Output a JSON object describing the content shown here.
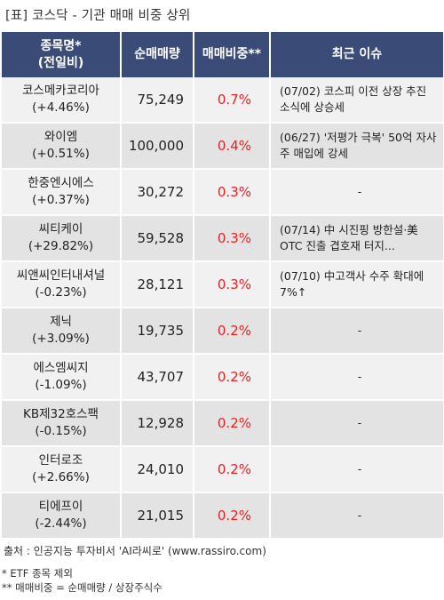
{
  "title": "[표] 코스닥 - 기관 매매 비중 상위",
  "headers": {
    "name_line1": "종목명*",
    "name_line2": "(전일비)",
    "volume": "순매매량",
    "ratio": "매매비중**",
    "issue": "최근 이슈"
  },
  "rows": [
    {
      "name": "코스메카코리아",
      "change": "(+4.46%)",
      "volume": "75,249",
      "ratio": "0.7%",
      "issue": "(07/02) 코스피 이전 상장 추진 소식에 상승세"
    },
    {
      "name": "와이엠",
      "change": "(+0.51%)",
      "volume": "100,000",
      "ratio": "0.4%",
      "issue": "(06/27) '저평가 극복' 50억 자사주 매입에 강세"
    },
    {
      "name": "한중엔시에스",
      "change": "(+0.37%)",
      "volume": "30,272",
      "ratio": "0.3%",
      "issue": "-"
    },
    {
      "name": "씨티케이",
      "change": "(+29.82%)",
      "volume": "59,528",
      "ratio": "0.3%",
      "issue": "(07/14) 中 시진핑 방한설·美OTC 진출 겹호재 터지..."
    },
    {
      "name": "씨앤씨인터내셔널",
      "change": "(-0.23%)",
      "volume": "28,121",
      "ratio": "0.3%",
      "issue": "(07/10) 中고객사 수주 확대에 7%↑"
    },
    {
      "name": "제닉",
      "change": "(+3.09%)",
      "volume": "19,735",
      "ratio": "0.2%",
      "issue": "-"
    },
    {
      "name": "에스엠씨지",
      "change": "(-1.09%)",
      "volume": "43,707",
      "ratio": "0.2%",
      "issue": "-"
    },
    {
      "name": "KB제32호스팩",
      "change": "(-0.15%)",
      "volume": "12,928",
      "ratio": "0.2%",
      "issue": "-"
    },
    {
      "name": "인터로조",
      "change": "(+2.66%)",
      "volume": "24,010",
      "ratio": "0.2%",
      "issue": "-"
    },
    {
      "name": "티에프이",
      "change": "(-2.44%)",
      "volume": "21,015",
      "ratio": "0.2%",
      "issue": "-"
    }
  ],
  "source": "출처 : 인공지능 투자비서 'AI라씨로' (www.rassiro.com)",
  "notes": [
    "* ETF 종목 제외",
    "** 매매비중 = 순매매량 / 상장주식수"
  ],
  "colors": {
    "header_bg": "#3b4b78",
    "ratio_text": "#e62222",
    "row_odd": "#f1f1f1",
    "row_even": "#e3e3e3"
  }
}
